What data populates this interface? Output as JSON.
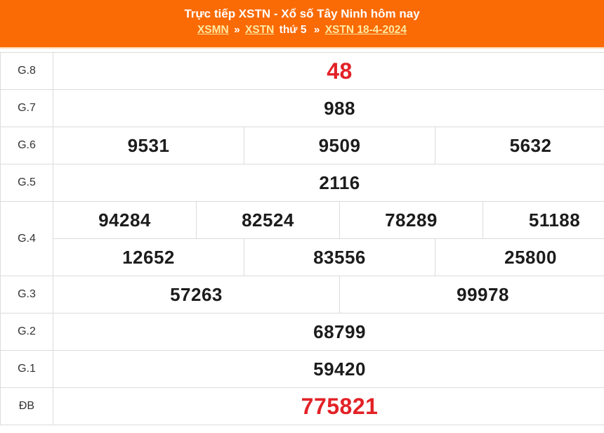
{
  "header": {
    "title": "Trực tiếp XSTN - Xổ số Tây Ninh hôm nay",
    "breadcrumb": [
      {
        "label": "XSMN",
        "type": "link"
      },
      {
        "label": "»",
        "type": "separator"
      },
      {
        "label": "XSTN",
        "type": "link"
      },
      {
        "label": "thứ 5",
        "type": "text"
      },
      {
        "label": "»",
        "type": "separator"
      },
      {
        "label": "XSTN 18-4-2024",
        "type": "link"
      }
    ],
    "colors": {
      "background": "#FA6A05",
      "title_text": "#FFFFFF",
      "link_text": "#FFE9A1"
    }
  },
  "results_table": {
    "colors": {
      "number": "#1C1C1C",
      "highlight_red": "#E22227",
      "label": "#333333",
      "border": "#DCDCDC"
    },
    "rows": [
      {
        "label": "G.8",
        "highlight": true,
        "lines": [
          [
            "48"
          ]
        ]
      },
      {
        "label": "G.7",
        "highlight": false,
        "lines": [
          [
            "988"
          ]
        ]
      },
      {
        "label": "G.6",
        "highlight": false,
        "lines": [
          [
            "9531",
            "9509",
            "5632"
          ]
        ]
      },
      {
        "label": "G.5",
        "highlight": false,
        "lines": [
          [
            "2116"
          ]
        ]
      },
      {
        "label": "G.4",
        "highlight": false,
        "lines": [
          [
            "94284",
            "82524",
            "78289",
            "51188"
          ],
          [
            "12652",
            "83556",
            "25800"
          ]
        ]
      },
      {
        "label": "G.3",
        "highlight": false,
        "lines": [
          [
            "57263",
            "99978"
          ]
        ]
      },
      {
        "label": "G.2",
        "highlight": false,
        "lines": [
          [
            "68799"
          ]
        ]
      },
      {
        "label": "G.1",
        "highlight": false,
        "lines": [
          [
            "59420"
          ]
        ]
      },
      {
        "label": "ĐB",
        "highlight": true,
        "lines": [
          [
            "775821"
          ]
        ]
      }
    ]
  }
}
